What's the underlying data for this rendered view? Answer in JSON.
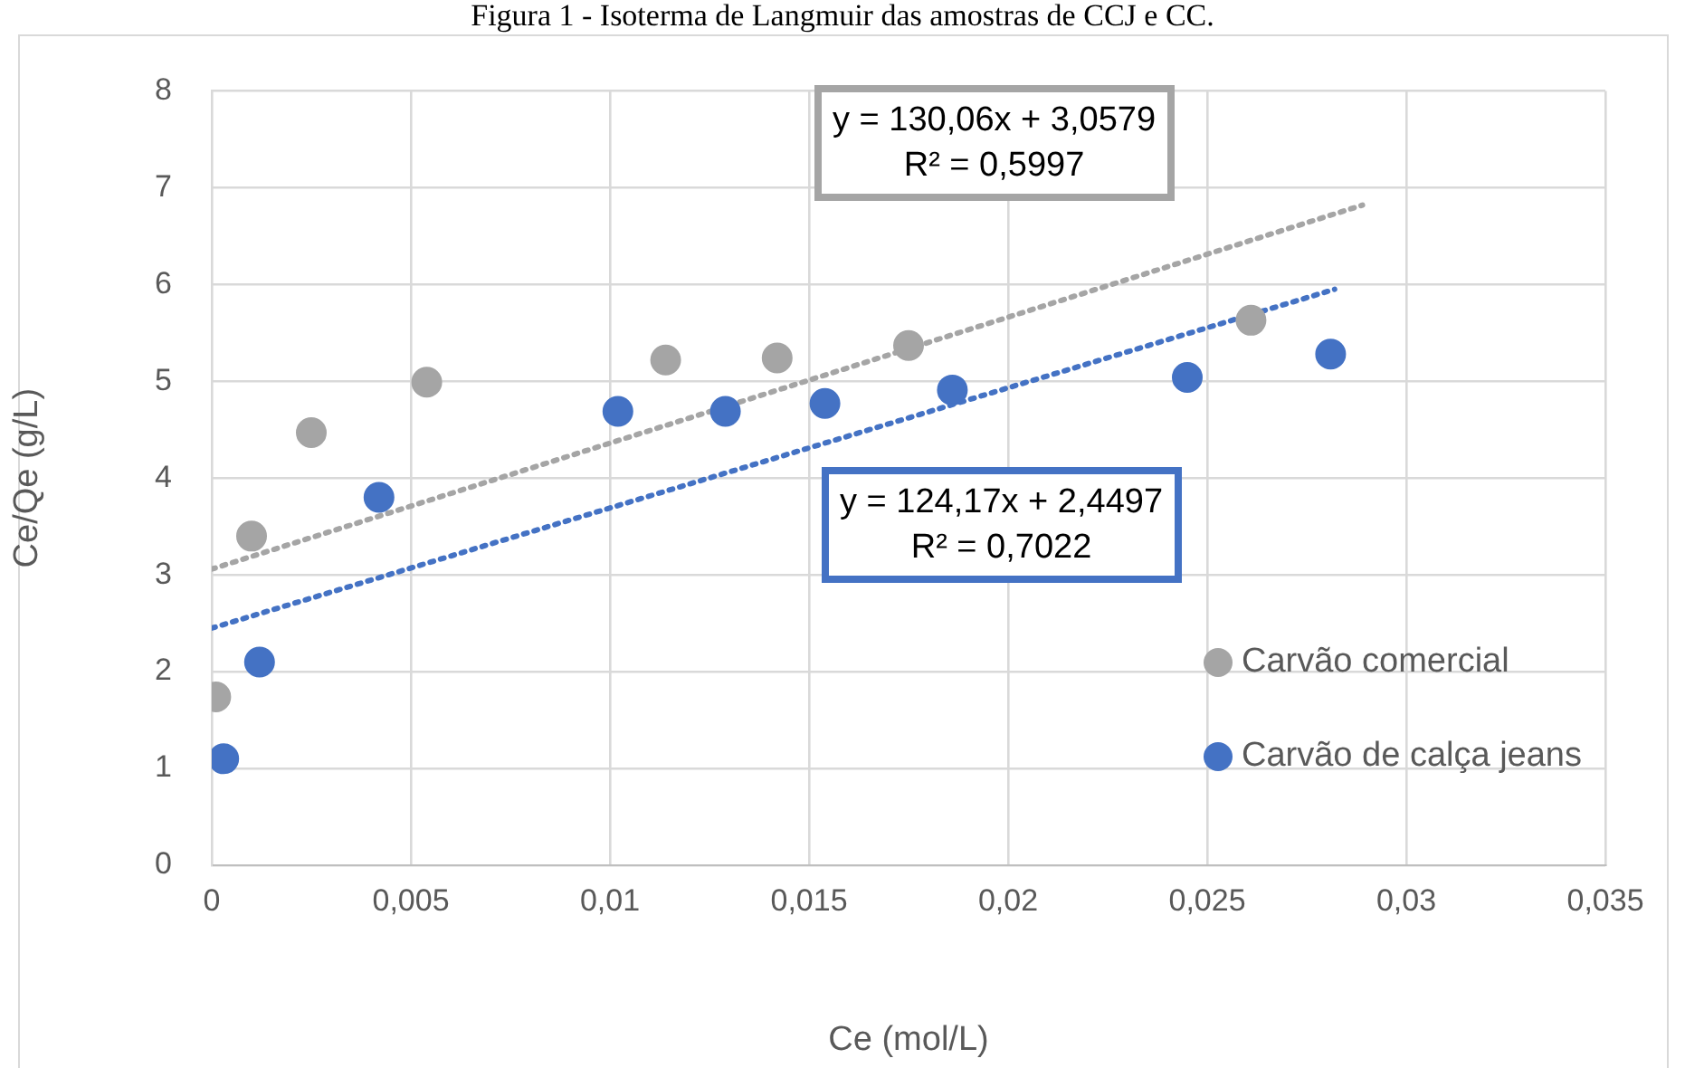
{
  "chart_data": {
    "type": "scatter",
    "title": "Figura 1 - Isoterma de Langmuir das amostras de CCJ e CC.",
    "xlabel": "Ce (mol/L)",
    "ylabel": "Ce/Qe (g/L)",
    "xlim": [
      0,
      0.035
    ],
    "xticks": [
      0,
      {
        "value": 0.005,
        "label": "0,005"
      },
      {
        "value": 0.01,
        "label": "0,01"
      },
      {
        "value": 0.015,
        "label": "0,015"
      },
      {
        "value": 0.02,
        "label": "0,02"
      },
      {
        "value": 0.025,
        "label": "0,025"
      },
      {
        "value": 0.03,
        "label": "0,03"
      },
      {
        "value": 0.035,
        "label": "0,035"
      }
    ],
    "ylim": [
      0,
      8
    ],
    "yticks": [
      0,
      1,
      2,
      3,
      4,
      5,
      6,
      7,
      8
    ],
    "grid": true,
    "legend": "right",
    "marker": "circle",
    "series": [
      {
        "name": "Carvão comercial",
        "color": "#a5a5a5",
        "x": [
          0.0001,
          0.001,
          0.0025,
          0.0054,
          0.0114,
          0.0142,
          0.0175,
          0.0261
        ],
        "values": [
          1.74,
          3.4,
          4.47,
          4.99,
          5.22,
          5.24,
          5.37,
          5.63
        ]
      },
      {
        "name": "Carvão de calça jeans",
        "color": "#4472c4",
        "x": [
          0.0003,
          0.0012,
          0.0042,
          0.0102,
          0.0129,
          0.0154,
          0.0186,
          0.0245,
          0.0281
        ],
        "values": [
          1.1,
          2.1,
          3.8,
          4.69,
          4.69,
          4.77,
          4.91,
          5.04,
          5.28
        ]
      },
      {
        "type": "line",
        "color": "#a5a5a5",
        "line_style": "dotted",
        "marker": "none",
        "x": [
          0,
          0.0289
        ],
        "values": [
          3.06,
          6.82
        ]
      },
      {
        "type": "line",
        "color": "#4472c4",
        "line_style": "dotted",
        "marker": "none",
        "x": [
          0,
          0.0282
        ],
        "values": [
          2.45,
          5.95
        ]
      }
    ],
    "annotations": [
      "y = 130,06x + 3,0579\nR² = 0,5997",
      "y = 124,17x + 2,4497\nR² = 0,7022"
    ]
  }
}
